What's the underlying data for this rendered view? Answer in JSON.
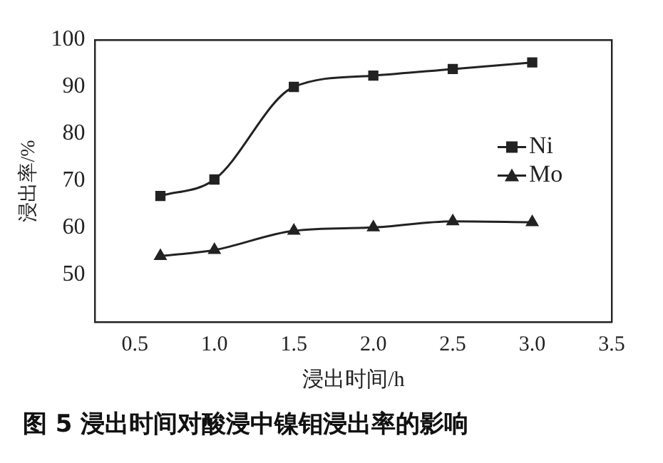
{
  "chart_data": {
    "type": "line",
    "xlabel": "浸出时间/h",
    "ylabel": "浸出率/%",
    "xlim": [
      0.25,
      3.5
    ],
    "xticks": [
      0.5,
      {
        "value": 1,
        "label": "1.0"
      },
      1.5,
      {
        "value": 2,
        "label": "2.0"
      },
      2.5,
      {
        "value": 3,
        "label": "3.0"
      },
      3.5
    ],
    "ylim": [
      40,
      100
    ],
    "yticks": [
      50,
      60,
      70,
      80,
      90,
      100
    ],
    "x": [
      0.66,
      1.0,
      1.5,
      2.0,
      2.5,
      3.0
    ],
    "series": [
      {
        "name": "Ni",
        "color": "#222222",
        "marker": "square",
        "values": [
          66.8,
          70.3,
          90,
          92.4,
          93.8,
          95.2
        ]
      },
      {
        "name": "Mo",
        "color": "#222222",
        "marker": "triangle",
        "values": [
          54,
          55.3,
          59.4,
          60.1,
          61.4,
          61.2
        ]
      }
    ],
    "legend": "right",
    "grid": false,
    "annotations": [
      "图 5   浸出时间对酸浸中镍钼浸出率的影响"
    ]
  }
}
